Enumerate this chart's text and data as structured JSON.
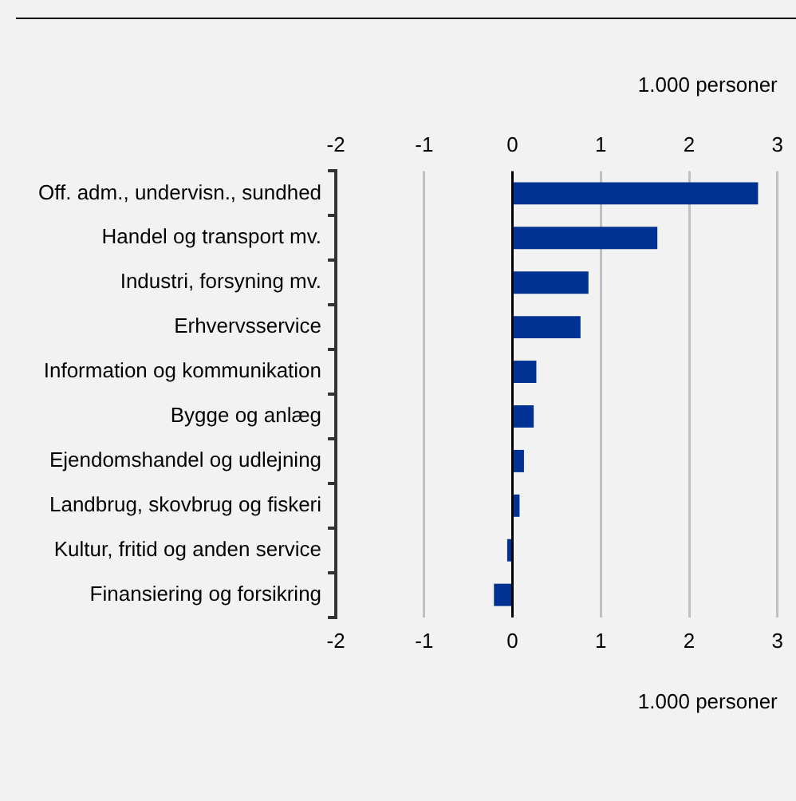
{
  "chart_data": {
    "type": "bar",
    "orientation": "horizontal",
    "categories": [
      "Off. adm., undervisn., sundhed",
      "Handel og transport mv.",
      "Industri, forsyning mv.",
      "Erhvervsservice",
      "Information og kommunikation",
      "Bygge og anlæg",
      "Ejendomshandel og udlejning",
      "Landbrug, skovbrug og fiskeri",
      "Kultur, fritid og anden service",
      "Finansiering og forsikring"
    ],
    "values": [
      2.78,
      1.64,
      0.86,
      0.77,
      0.27,
      0.24,
      0.13,
      0.08,
      -0.06,
      -0.21
    ],
    "color": "#003293",
    "xlim": [
      -2,
      3
    ],
    "xticks": [
      -2,
      -1,
      0,
      1,
      2,
      3
    ],
    "xlabel": "1.000 personer",
    "x2lim": [
      -2,
      3
    ],
    "x2ticks": [
      -2,
      -1,
      0,
      1,
      2,
      3
    ],
    "x2label": "1.000 personer",
    "grid": "x",
    "legend": false
  }
}
